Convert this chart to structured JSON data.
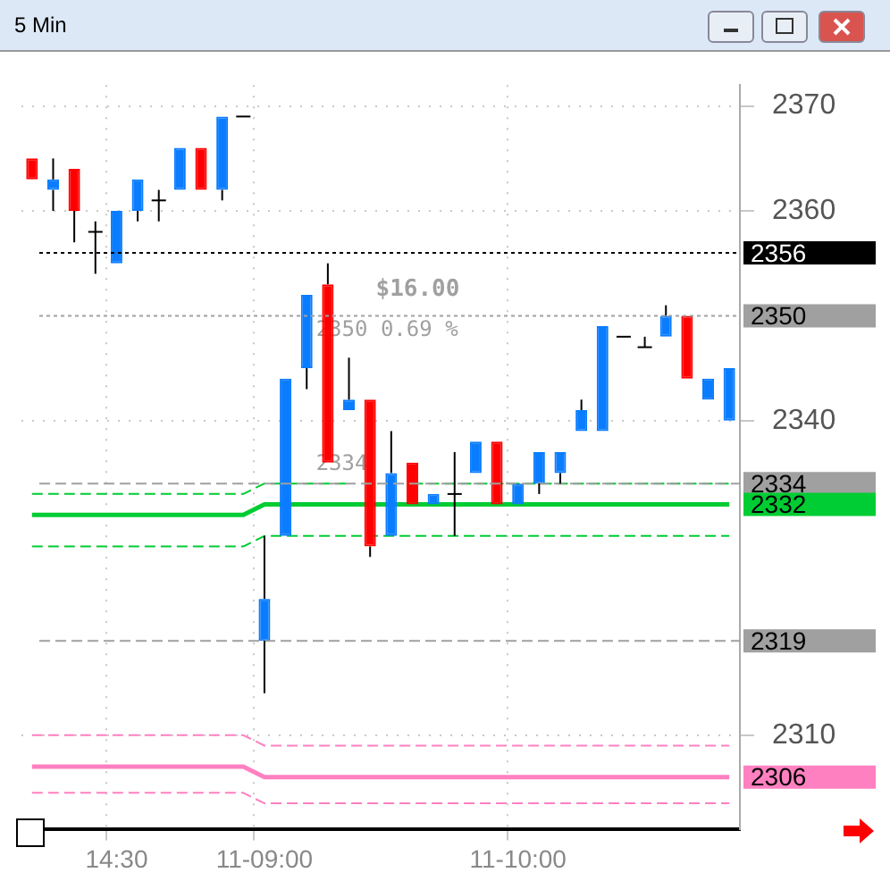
{
  "chart_data": {
    "type": "candlestick",
    "title": "5 Min",
    "categories": [
      null,
      null,
      null,
      null,
      "14:30",
      null,
      null,
      null,
      null,
      null,
      null,
      "11-09:00",
      null,
      null,
      null,
      null,
      null,
      null,
      null,
      null,
      null,
      null,
      null,
      "11-10:00",
      null,
      null,
      null,
      null,
      null,
      null,
      null,
      null,
      null,
      null
    ],
    "ohlc": [
      [
        2365,
        2365,
        2363,
        2363
      ],
      [
        2362,
        2365,
        2360,
        2363
      ],
      [
        2364,
        2364,
        2357,
        2360
      ],
      [
        2358,
        2359,
        2354,
        2358
      ],
      [
        2355,
        2360,
        2355,
        2360
      ],
      [
        2360,
        2363,
        2359,
        2363
      ],
      [
        2361,
        2362,
        2359,
        2361
      ],
      [
        2362,
        2366,
        2362,
        2366
      ],
      [
        2366,
        2366,
        2362,
        2362
      ],
      [
        2362,
        2369,
        2361,
        2369
      ],
      [
        2369,
        2369,
        2369,
        2369
      ],
      [
        2319,
        2329,
        2314,
        2323
      ],
      [
        2329,
        2344,
        2329,
        2344
      ],
      [
        2345,
        2352,
        2343,
        2352
      ],
      [
        2353,
        2355,
        2336,
        2336
      ],
      [
        2341,
        2346,
        2341,
        2342
      ],
      [
        2342,
        2342,
        2327,
        2328
      ],
      [
        2329,
        2339,
        2329,
        2335
      ],
      [
        2336,
        2336,
        2332,
        2332
      ],
      [
        2332,
        2333,
        2332,
        2333
      ],
      [
        2333,
        2337,
        2329,
        2333
      ],
      [
        2335,
        2338,
        2335,
        2338
      ],
      [
        2338,
        2338,
        2332,
        2332
      ],
      [
        2332,
        2334,
        2332,
        2334
      ],
      [
        2334,
        2337,
        2333,
        2337
      ],
      [
        2335,
        2337,
        2334,
        2337
      ],
      [
        2339,
        2342,
        2339,
        2341
      ],
      [
        2339,
        2349,
        2339,
        2349
      ],
      [
        2348,
        2348,
        2348,
        2348
      ],
      [
        2347,
        2348,
        2347,
        2347
      ],
      [
        2348,
        2351,
        2348,
        2350
      ],
      [
        2350,
        2350,
        2344,
        2344
      ],
      [
        2342,
        2344,
        2342,
        2344
      ],
      [
        2340,
        2345,
        2340,
        2345
      ]
    ],
    "colors": [
      "#ff0000",
      "#0a7cff",
      "#ff0000",
      "#000000",
      "#0a7cff",
      "#0a7cff",
      "#000000",
      "#0a7cff",
      "#ff0000",
      "#0a7cff",
      "#000000",
      "#0a7cff",
      "#0a7cff",
      "#0a7cff",
      "#ff0000",
      "#0a7cff",
      "#ff0000",
      "#0a7cff",
      "#ff0000",
      "#0a7cff",
      "#000000",
      "#0a7cff",
      "#ff0000",
      "#0a7cff",
      "#0a7cff",
      "#0a7cff",
      "#0a7cff",
      "#0a7cff",
      "#000000",
      "#000000",
      "#0a7cff",
      "#ff0000",
      "#0a7cff",
      "#0a7cff"
    ],
    "series": [
      {
        "type": "line",
        "color": "#00cc33",
        "line_style": "solid",
        "values": [
          2331,
          2331,
          2331,
          2331,
          2331,
          2331,
          2331,
          2331,
          2331,
          2331,
          2331,
          2332,
          2332,
          2332,
          2332,
          2332,
          2332,
          2332,
          2332,
          2332,
          2332,
          2332,
          2332,
          2332,
          2332,
          2332,
          2332,
          2332,
          2332,
          2332,
          2332,
          2332,
          2332,
          2332
        ],
        "value_labels": [
          null,
          null,
          null,
          null,
          null,
          null,
          null,
          null,
          null,
          null,
          null,
          null,
          null,
          null,
          null,
          null,
          null,
          null,
          null,
          null,
          null,
          null,
          null,
          null,
          null,
          null,
          null,
          null,
          null,
          null,
          null,
          null,
          null,
          "2332"
        ]
      },
      {
        "type": "line",
        "color": "#00cc33",
        "line_style": "dashed",
        "values": [
          2333,
          2333,
          2333,
          2333,
          2333,
          2333,
          2333,
          2333,
          2333,
          2333,
          2333,
          2334,
          2334,
          2334,
          2334,
          2334,
          null,
          null,
          2334,
          2334,
          2334,
          2334,
          2334,
          2334,
          2334,
          2334,
          2334,
          2334,
          2334,
          2334,
          2334,
          2334,
          2334,
          2334
        ]
      },
      {
        "type": "line",
        "color": "#00cc33",
        "line_style": "dashed",
        "values": [
          2328,
          2328,
          2328,
          2328,
          2328,
          2328,
          2328,
          2328,
          2328,
          2328,
          2328,
          2329,
          2329,
          2329,
          2329,
          2329,
          2329,
          2329,
          2329,
          2329,
          2329,
          2329,
          2329,
          2329,
          2329,
          2329,
          2329,
          2329,
          2329,
          2329,
          2329,
          2329,
          2329,
          2329
        ]
      },
      {
        "type": "line",
        "color": "#ff80c0",
        "line_style": "solid",
        "values": [
          2307,
          2307,
          2307,
          2307,
          2307,
          2307,
          2307,
          2307,
          2307,
          2307,
          2307,
          2306,
          2306,
          2306,
          2306,
          2306,
          2306,
          2306,
          2306,
          2306,
          2306,
          2306,
          2306,
          2306,
          2306,
          2306,
          2306,
          2306,
          2306,
          2306,
          2306,
          2306,
          2306,
          2306
        ],
        "value_labels": [
          null,
          null,
          null,
          null,
          null,
          null,
          null,
          null,
          null,
          null,
          null,
          null,
          null,
          null,
          null,
          null,
          null,
          null,
          null,
          null,
          null,
          null,
          null,
          null,
          null,
          null,
          null,
          null,
          null,
          null,
          null,
          null,
          null,
          "2306"
        ]
      },
      {
        "type": "line",
        "color": "#ff80c0",
        "line_style": "dashed",
        "values": [
          2310,
          2310,
          2310,
          2310,
          2310,
          2310,
          2310,
          2310,
          2310,
          2310,
          2310,
          2309,
          2309,
          2309,
          2309,
          2309,
          2309,
          2309,
          2309,
          2309,
          2309,
          2309,
          2309,
          2309,
          2309,
          2309,
          2309,
          2309,
          2309,
          2309,
          2309,
          2309,
          2309,
          2309
        ]
      },
      {
        "type": "line",
        "color": "#ff80c0",
        "line_style": "dashed",
        "values": [
          2304.5,
          2304.5,
          2304.5,
          2304.5,
          2304.5,
          2304.5,
          2304.5,
          2304.5,
          2304.5,
          2304.5,
          2304.5,
          2303.5,
          2303.5,
          2303.5,
          2303.5,
          2303.5,
          2303.5,
          2303.5,
          2303.5,
          2303.5,
          2303.5,
          2303.5,
          2303.5,
          2303.5,
          2303.5,
          2303.5,
          2303.5,
          2303.5,
          2303.5,
          2303.5,
          2303.5,
          2303.5,
          2303.5,
          2303.5
        ]
      }
    ],
    "ylim": [
      2301,
      2372
    ],
    "yticks": [
      2310,
      2340,
      2360,
      2370
    ],
    "grid": true,
    "legend": false,
    "ref_lines": [
      {
        "axis": "y",
        "value": 2356,
        "label": "2356",
        "color": "#000000",
        "line_style": "dotted"
      },
      {
        "axis": "y",
        "value": 2350,
        "label": "2350",
        "color": "#a0a0a0",
        "line_style": "dotted"
      },
      {
        "axis": "y",
        "value": 2334,
        "label": "2334",
        "color": "#a0a0a0",
        "line_style": "dashed"
      },
      {
        "axis": "y",
        "value": 2319,
        "label": "2319",
        "color": "#a0a0a0",
        "line_style": "dashed"
      }
    ],
    "annotations": [
      "$16.00",
      "2350 0.69 %",
      "2334"
    ]
  }
}
